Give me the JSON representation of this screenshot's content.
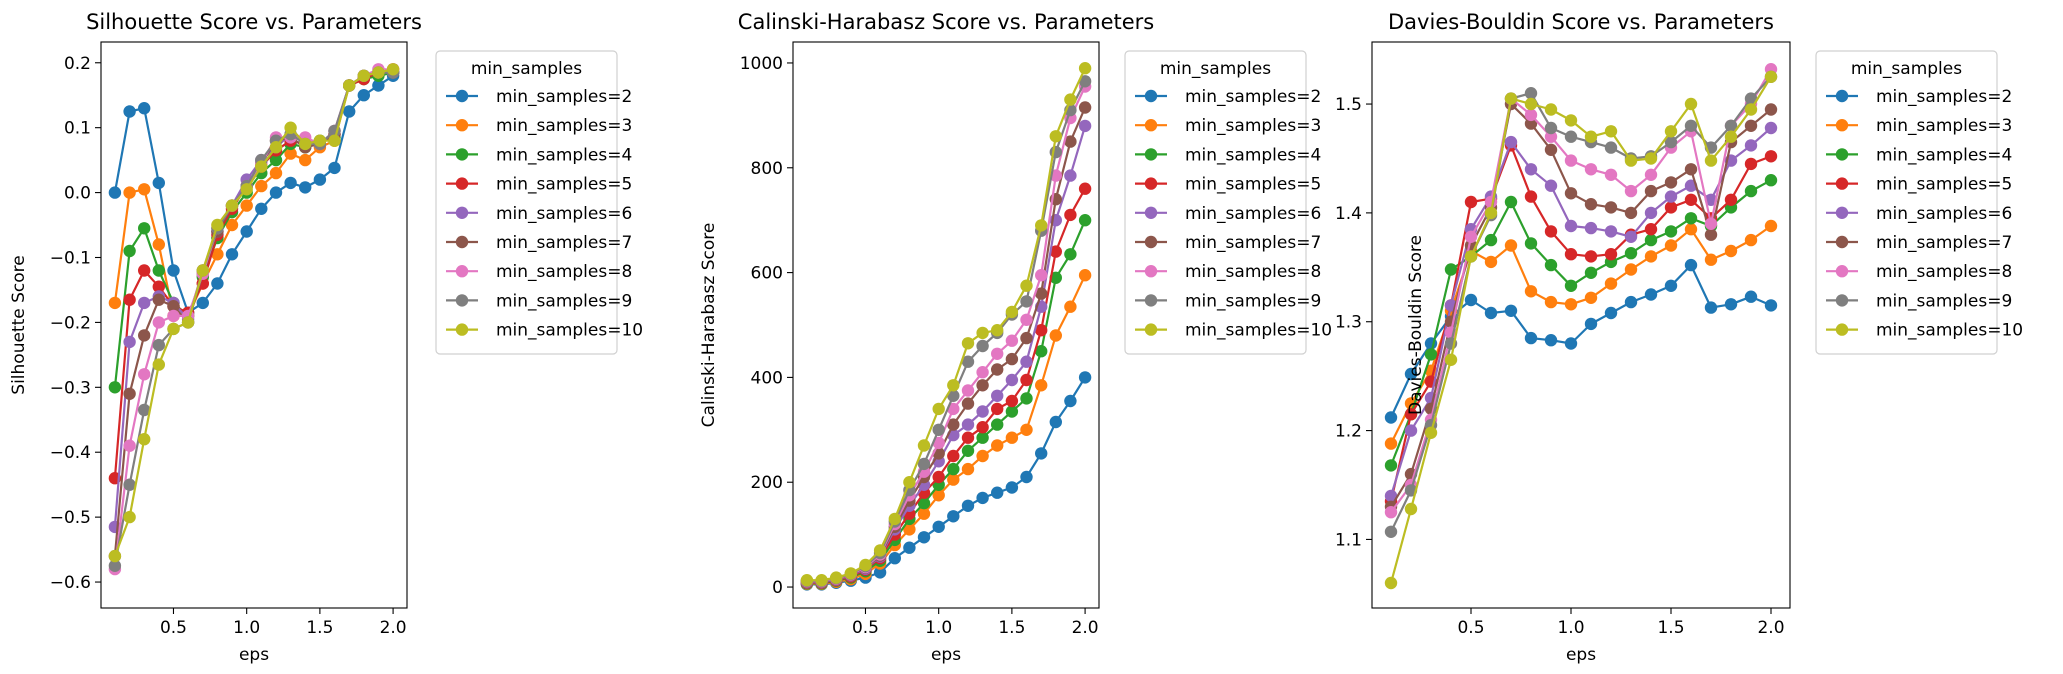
{
  "chart_data": [
    {
      "type": "line",
      "title": "Silhouette Score vs. Parameters",
      "xlabel": "eps",
      "ylabel": "Silhouette Score",
      "xlim": [
        0.005,
        2.095
      ],
      "ylim": [
        -0.64,
        0.232
      ],
      "xticks": [
        0.5,
        1.0,
        1.5,
        2.0
      ],
      "xtick_labels": [
        "0.5",
        "1.0",
        "1.5",
        "2.0"
      ],
      "yticks": [
        -0.6,
        -0.5,
        -0.4,
        -0.3,
        -0.2,
        -0.1,
        0.0,
        0.1,
        0.2
      ],
      "ytick_labels": [
        "−0.6",
        "−0.5",
        "−0.4",
        "−0.3",
        "−0.2",
        "−0.1",
        "0.0",
        "0.1",
        "0.2"
      ],
      "grid": false,
      "legend_title": "min_samples",
      "legend_position": "outside-right",
      "x": [
        0.1,
        0.2,
        0.3,
        0.4,
        0.5,
        0.6,
        0.7,
        0.8,
        0.9,
        1.0,
        1.1,
        1.2,
        1.3,
        1.4,
        1.5,
        1.6,
        1.7,
        1.8,
        1.9,
        2.0
      ],
      "series": [
        {
          "name": "min_samples=2",
          "color": "#1f77b4",
          "values": [
            0.0,
            0.125,
            0.13,
            0.015,
            -0.12,
            -0.185,
            -0.17,
            -0.14,
            -0.095,
            -0.06,
            -0.025,
            0.0,
            0.015,
            0.008,
            0.02,
            0.038,
            0.125,
            0.15,
            0.165,
            0.18
          ]
        },
        {
          "name": "min_samples=3",
          "color": "#ff7f0e",
          "values": [
            -0.17,
            0.0,
            0.005,
            -0.08,
            -0.19,
            -0.19,
            -0.14,
            -0.095,
            -0.05,
            -0.02,
            0.01,
            0.03,
            0.06,
            0.05,
            0.07,
            0.08,
            0.165,
            0.175,
            0.185,
            0.185
          ]
        },
        {
          "name": "min_samples=4",
          "color": "#2ca02c",
          "values": [
            -0.3,
            -0.09,
            -0.055,
            -0.12,
            -0.17,
            -0.19,
            -0.13,
            -0.07,
            -0.03,
            0.0,
            0.03,
            0.05,
            0.075,
            0.07,
            0.08,
            0.085,
            0.165,
            0.175,
            0.18,
            0.185
          ]
        },
        {
          "name": "min_samples=5",
          "color": "#d62728",
          "values": [
            -0.44,
            -0.165,
            -0.12,
            -0.145,
            -0.175,
            -0.185,
            -0.14,
            -0.065,
            -0.025,
            0.01,
            0.04,
            0.065,
            0.08,
            0.075,
            0.075,
            0.09,
            0.165,
            0.175,
            0.185,
            0.19
          ]
        },
        {
          "name": "min_samples=6",
          "color": "#9467bd",
          "values": [
            -0.515,
            -0.23,
            -0.17,
            -0.16,
            -0.17,
            -0.195,
            -0.12,
            -0.06,
            -0.02,
            0.02,
            0.05,
            0.07,
            0.09,
            0.08,
            0.075,
            0.095,
            0.165,
            0.18,
            0.185,
            0.185
          ]
        },
        {
          "name": "min_samples=7",
          "color": "#8c564b",
          "values": [
            -0.56,
            -0.31,
            -0.22,
            -0.165,
            -0.175,
            -0.2,
            -0.125,
            -0.06,
            -0.02,
            0.01,
            0.045,
            0.08,
            0.085,
            0.07,
            0.075,
            0.09,
            0.165,
            0.18,
            0.185,
            0.185
          ]
        },
        {
          "name": "min_samples=8",
          "color": "#e377c2",
          "values": [
            -0.58,
            -0.39,
            -0.28,
            -0.2,
            -0.19,
            -0.19,
            -0.125,
            -0.055,
            -0.02,
            0.01,
            0.045,
            0.085,
            0.085,
            0.085,
            0.075,
            0.095,
            0.165,
            0.18,
            0.19,
            0.19
          ]
        },
        {
          "name": "min_samples=9",
          "color": "#7f7f7f",
          "values": [
            -0.575,
            -0.45,
            -0.335,
            -0.235,
            -0.21,
            -0.2,
            -0.12,
            -0.055,
            -0.02,
            0.01,
            0.05,
            0.08,
            0.09,
            0.075,
            0.075,
            0.095,
            0.165,
            0.18,
            0.185,
            0.185
          ]
        },
        {
          "name": "min_samples=10",
          "color": "#bcbd22",
          "values": [
            -0.56,
            -0.5,
            -0.38,
            -0.265,
            -0.21,
            -0.2,
            -0.12,
            -0.05,
            -0.02,
            0.005,
            0.04,
            0.07,
            0.1,
            0.075,
            0.08,
            0.08,
            0.165,
            0.18,
            0.185,
            0.19
          ]
        }
      ]
    },
    {
      "type": "line",
      "title": "Calinski-Harabasz Score vs. Parameters",
      "xlabel": "eps",
      "ylabel": "Calinski-Harabasz Score",
      "xlim": [
        0.005,
        2.095
      ],
      "ylim": [
        -40,
        1040
      ],
      "xticks": [
        0.5,
        1.0,
        1.5,
        2.0
      ],
      "xtick_labels": [
        "0.5",
        "1.0",
        "1.5",
        "2.0"
      ],
      "yticks": [
        0,
        200,
        400,
        600,
        800,
        1000
      ],
      "ytick_labels": [
        "0",
        "200",
        "400",
        "600",
        "800",
        "1000"
      ],
      "grid": false,
      "legend_title": "min_samples",
      "legend_position": "outside-right",
      "x": [
        0.1,
        0.2,
        0.3,
        0.4,
        0.5,
        0.6,
        0.7,
        0.8,
        0.9,
        1.0,
        1.1,
        1.2,
        1.3,
        1.4,
        1.5,
        1.6,
        1.7,
        1.8,
        1.9,
        2.0
      ],
      "series": [
        {
          "name": "min_samples=2",
          "color": "#1f77b4",
          "values": [
            5,
            5,
            8,
            12,
            18,
            28,
            55,
            75,
            95,
            115,
            135,
            155,
            170,
            180,
            190,
            210,
            255,
            315,
            355,
            400
          ]
        },
        {
          "name": "min_samples=3",
          "color": "#ff7f0e",
          "values": [
            6,
            6,
            10,
            15,
            25,
            45,
            80,
            110,
            140,
            175,
            205,
            225,
            250,
            270,
            285,
            300,
            385,
            480,
            535,
            595
          ]
        },
        {
          "name": "min_samples=4",
          "color": "#2ca02c",
          "values": [
            7,
            7,
            12,
            18,
            30,
            50,
            90,
            130,
            160,
            195,
            225,
            260,
            285,
            310,
            335,
            360,
            450,
            590,
            635,
            700
          ]
        },
        {
          "name": "min_samples=5",
          "color": "#d62728",
          "values": [
            8,
            8,
            13,
            20,
            33,
            55,
            100,
            140,
            180,
            210,
            250,
            285,
            305,
            340,
            355,
            395,
            490,
            640,
            710,
            760
          ]
        },
        {
          "name": "min_samples=6",
          "color": "#9467bd",
          "values": [
            9,
            9,
            14,
            22,
            35,
            58,
            110,
            155,
            195,
            240,
            290,
            310,
            335,
            365,
            395,
            430,
            535,
            700,
            785,
            880
          ]
        },
        {
          "name": "min_samples=7",
          "color": "#8c564b",
          "values": [
            10,
            10,
            15,
            23,
            37,
            60,
            115,
            165,
            210,
            255,
            310,
            350,
            385,
            415,
            435,
            475,
            560,
            740,
            850,
            915
          ]
        },
        {
          "name": "min_samples=8",
          "color": "#e377c2",
          "values": [
            11,
            11,
            16,
            24,
            38,
            62,
            120,
            175,
            220,
            275,
            340,
            375,
            410,
            445,
            470,
            510,
            595,
            785,
            895,
            955
          ]
        },
        {
          "name": "min_samples=9",
          "color": "#7f7f7f",
          "values": [
            12,
            12,
            17,
            25,
            40,
            65,
            125,
            185,
            235,
            300,
            365,
            430,
            460,
            485,
            520,
            545,
            680,
            830,
            910,
            965
          ]
        },
        {
          "name": "min_samples=10",
          "color": "#bcbd22",
          "values": [
            13,
            13,
            18,
            26,
            42,
            70,
            130,
            200,
            270,
            340,
            385,
            465,
            485,
            490,
            525,
            575,
            690,
            860,
            930,
            990
          ]
        }
      ]
    },
    {
      "type": "line",
      "title": "Davies-Bouldin Score vs. Parameters",
      "xlabel": "eps",
      "ylabel": "Davies-Bouldin Score",
      "xlim": [
        0.005,
        2.095
      ],
      "ylim": [
        1.037,
        1.557
      ],
      "xticks": [
        0.5,
        1.0,
        1.5,
        2.0
      ],
      "xtick_labels": [
        "0.5",
        "1.0",
        "1.5",
        "2.0"
      ],
      "yticks": [
        1.1,
        1.2,
        1.3,
        1.4,
        1.5
      ],
      "ytick_labels": [
        "1.1",
        "1.2",
        "1.3",
        "1.4",
        "1.5"
      ],
      "grid": false,
      "legend_title": "min_samples",
      "legend_position": "outside-right",
      "x": [
        0.1,
        0.2,
        0.3,
        0.4,
        0.5,
        0.6,
        0.7,
        0.8,
        0.9,
        1.0,
        1.1,
        1.2,
        1.3,
        1.4,
        1.5,
        1.6,
        1.7,
        1.8,
        1.9,
        2.0
      ],
      "series": [
        {
          "name": "min_samples=2",
          "color": "#1f77b4",
          "values": [
            1.212,
            1.252,
            1.28,
            1.305,
            1.32,
            1.308,
            1.31,
            1.285,
            1.283,
            1.28,
            1.298,
            1.308,
            1.318,
            1.325,
            1.333,
            1.352,
            1.313,
            1.316,
            1.323,
            1.315
          ]
        },
        {
          "name": "min_samples=3",
          "color": "#ff7f0e",
          "values": [
            1.188,
            1.225,
            1.255,
            1.31,
            1.365,
            1.355,
            1.37,
            1.328,
            1.318,
            1.316,
            1.322,
            1.335,
            1.348,
            1.36,
            1.37,
            1.385,
            1.357,
            1.365,
            1.375,
            1.388
          ]
        },
        {
          "name": "min_samples=4",
          "color": "#2ca02c",
          "values": [
            1.168,
            1.215,
            1.27,
            1.348,
            1.36,
            1.375,
            1.41,
            1.372,
            1.352,
            1.333,
            1.345,
            1.355,
            1.363,
            1.375,
            1.383,
            1.395,
            1.388,
            1.405,
            1.42,
            1.43
          ]
        },
        {
          "name": "min_samples=5",
          "color": "#d62728",
          "values": [
            1.135,
            1.215,
            1.245,
            1.315,
            1.41,
            1.413,
            1.462,
            1.415,
            1.383,
            1.362,
            1.36,
            1.362,
            1.38,
            1.385,
            1.405,
            1.412,
            1.395,
            1.412,
            1.445,
            1.452
          ]
        },
        {
          "name": "min_samples=6",
          "color": "#9467bd",
          "values": [
            1.14,
            1.2,
            1.23,
            1.315,
            1.385,
            1.415,
            1.465,
            1.44,
            1.425,
            1.388,
            1.386,
            1.383,
            1.378,
            1.4,
            1.415,
            1.425,
            1.412,
            1.448,
            1.462,
            1.478
          ]
        },
        {
          "name": "min_samples=7",
          "color": "#8c564b",
          "values": [
            1.13,
            1.16,
            1.22,
            1.3,
            1.37,
            1.405,
            1.5,
            1.482,
            1.458,
            1.418,
            1.408,
            1.405,
            1.4,
            1.42,
            1.428,
            1.44,
            1.38,
            1.465,
            1.48,
            1.495
          ]
        },
        {
          "name": "min_samples=8",
          "color": "#e377c2",
          "values": [
            1.125,
            1.15,
            1.21,
            1.29,
            1.378,
            1.41,
            1.505,
            1.49,
            1.47,
            1.448,
            1.44,
            1.435,
            1.42,
            1.435,
            1.46,
            1.475,
            1.39,
            1.48,
            1.5,
            1.532
          ]
        },
        {
          "name": "min_samples=9",
          "color": "#7f7f7f",
          "values": [
            1.107,
            1.145,
            1.205,
            1.28,
            1.36,
            1.398,
            1.505,
            1.51,
            1.478,
            1.47,
            1.465,
            1.46,
            1.45,
            1.452,
            1.465,
            1.48,
            1.46,
            1.48,
            1.505,
            1.525
          ]
        },
        {
          "name": "min_samples=10",
          "color": "#bcbd22",
          "values": [
            1.06,
            1.128,
            1.198,
            1.265,
            1.36,
            1.4,
            1.505,
            1.5,
            1.495,
            1.485,
            1.47,
            1.475,
            1.448,
            1.45,
            1.475,
            1.5,
            1.448,
            1.47,
            1.495,
            1.525
          ]
        }
      ]
    }
  ]
}
